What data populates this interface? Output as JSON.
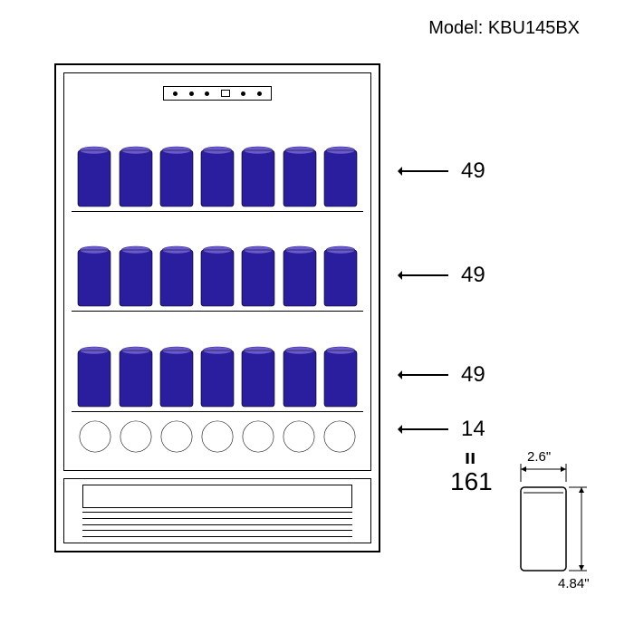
{
  "model": {
    "label": "Model: KBU145BX"
  },
  "colors": {
    "can_dark": "#2a1d9e",
    "can_light": "#f5f53a",
    "can_mid": "#6a5acd",
    "bottle_center": "#3020c0",
    "bottle_ring": "#e8e860",
    "outline": "#000000",
    "background": "#ffffff"
  },
  "fridge": {
    "shelves": [
      {
        "type": "cans",
        "count": 7,
        "capacity": 49
      },
      {
        "type": "cans",
        "count": 7,
        "capacity": 49
      },
      {
        "type": "cans",
        "count": 7,
        "capacity": 49
      },
      {
        "type": "bottles",
        "count": 7,
        "capacity": 14
      }
    ],
    "total": 161,
    "equals": "ıı"
  },
  "can_dimensions": {
    "width": "2.6\"",
    "height": "4.84\""
  },
  "typography": {
    "model_fontsize": 20,
    "shelf_label_fontsize": 24,
    "total_fontsize": 28,
    "dim_fontsize": 15
  }
}
